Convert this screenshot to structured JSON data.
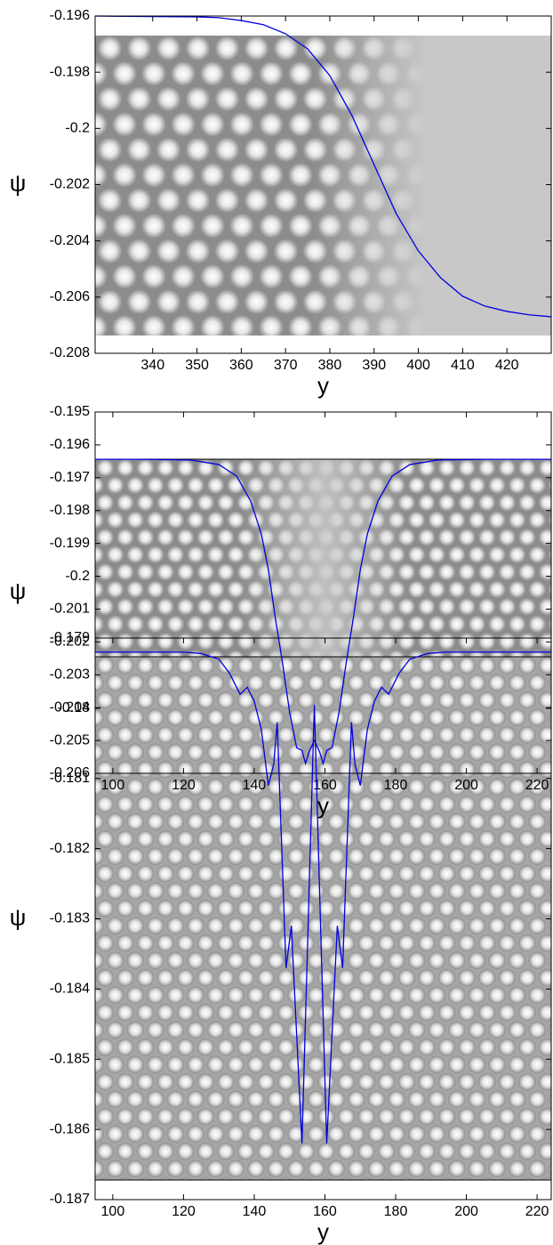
{
  "chart_data": [
    {
      "type": "line",
      "xlabel": "y",
      "ylabel": "ψ",
      "color": "#0000e0",
      "xlim": [
        327,
        430
      ],
      "ylim": [
        -0.208,
        -0.196
      ],
      "xticks": [
        340,
        350,
        360,
        370,
        380,
        390,
        400,
        410,
        420
      ],
      "yticks": [
        -0.196,
        -0.198,
        -0.2,
        -0.202,
        -0.204,
        -0.206,
        -0.208
      ],
      "x": [
        327,
        340,
        350,
        355,
        360,
        365,
        370,
        375,
        380,
        385,
        390,
        395,
        400,
        405,
        410,
        415,
        420,
        425,
        430
      ],
      "values": [
        -0.196,
        -0.19602,
        -0.19603,
        -0.19606,
        -0.19616,
        -0.19631,
        -0.19663,
        -0.19717,
        -0.19812,
        -0.19954,
        -0.20129,
        -0.20303,
        -0.20436,
        -0.20531,
        -0.20597,
        -0.20632,
        -0.20651,
        -0.20663,
        -0.2067
      ]
    },
    {
      "type": "line",
      "xlabel": "y",
      "ylabel": "ψ",
      "color": "#0000e0",
      "xlim": [
        95,
        224
      ],
      "ylim": [
        -0.206,
        -0.195
      ],
      "xticks": [
        100,
        120,
        140,
        160,
        180,
        200,
        220
      ],
      "yticks": [
        -0.195,
        -0.196,
        -0.197,
        -0.198,
        -0.199,
        -0.2,
        -0.201,
        -0.202,
        -0.203,
        -0.204,
        -0.205,
        -0.206
      ],
      "x": [
        95,
        107,
        122,
        130,
        135,
        139,
        142,
        144,
        146,
        148,
        150,
        152,
        153.5,
        154.5,
        155.5,
        157,
        158.5,
        159.5,
        160.5,
        162,
        164,
        166,
        168,
        170,
        172,
        175,
        179,
        184,
        192,
        207,
        224
      ],
      "values": [
        -0.19644,
        -0.19644,
        -0.19646,
        -0.1966,
        -0.19695,
        -0.19771,
        -0.19871,
        -0.1998,
        -0.20129,
        -0.20264,
        -0.20413,
        -0.20522,
        -0.2053,
        -0.2057,
        -0.20535,
        -0.205,
        -0.20535,
        -0.2057,
        -0.2053,
        -0.20522,
        -0.20413,
        -0.20264,
        -0.20129,
        -0.1998,
        -0.19871,
        -0.19771,
        -0.19695,
        -0.1966,
        -0.19646,
        -0.19644,
        -0.19644
      ]
    },
    {
      "type": "line",
      "xlabel": "y",
      "ylabel": "ψ",
      "color": "#0000e0",
      "xlim": [
        95,
        224
      ],
      "ylim": [
        -0.187,
        -0.179
      ],
      "xticks": [
        100,
        120,
        140,
        160,
        180,
        200,
        220
      ],
      "yticks": [
        -0.179,
        -0.18,
        -0.181,
        -0.182,
        -0.183,
        -0.184,
        -0.185,
        -0.186,
        -0.187
      ],
      "x": [
        95,
        120,
        125,
        130,
        133,
        136,
        138,
        140,
        142,
        144,
        145.5,
        146.5,
        149,
        150.5,
        153.5,
        157,
        160.5,
        163.5,
        165,
        167.5,
        168.5,
        170,
        172,
        174,
        176,
        178,
        181,
        184,
        189,
        194,
        224
      ],
      "values": [
        -0.1792,
        -0.1792,
        -0.17922,
        -0.1793,
        -0.1795,
        -0.1798,
        -0.1797,
        -0.1799,
        -0.1803,
        -0.1811,
        -0.1808,
        -0.1802,
        -0.1837,
        -0.1831,
        -0.1862,
        -0.17995,
        -0.1862,
        -0.1831,
        -0.1837,
        -0.1802,
        -0.1808,
        -0.1811,
        -0.1803,
        -0.1799,
        -0.1797,
        -0.1798,
        -0.1795,
        -0.1793,
        -0.17922,
        -0.1792,
        -0.1792
      ]
    }
  ]
}
